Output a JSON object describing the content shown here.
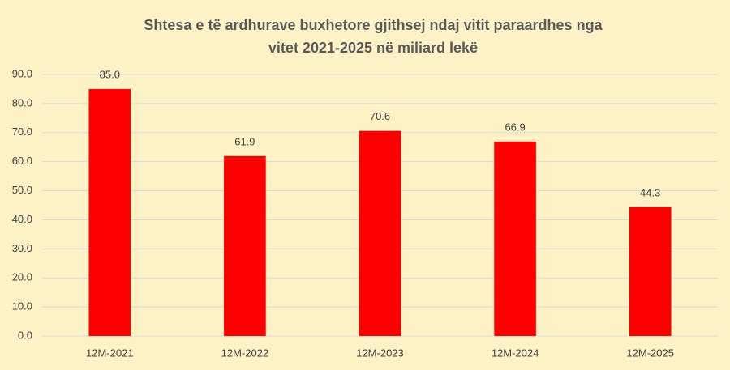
{
  "chart_data": {
    "type": "bar",
    "title": [
      "Shtesa e të ardhurave buxhetore gjithsej  ndaj vitit paraardhes nga",
      "vitet 2021-2025  në miliard lekë"
    ],
    "categories": [
      "12M-2021",
      "12M-2022",
      "12M-2023",
      "12M-2024",
      "12M-2025"
    ],
    "values": [
      85.0,
      61.9,
      70.6,
      66.9,
      44.3
    ],
    "value_labels": [
      "85.0",
      "61.9",
      "70.6",
      "66.9",
      "44.3"
    ],
    "color": "#ff0000",
    "ylim": [
      0,
      90
    ],
    "yticks": [
      {
        "value": 0,
        "label": "0.0"
      },
      {
        "value": 10,
        "label": "10.0"
      },
      {
        "value": 20,
        "label": "20.0"
      },
      {
        "value": 30,
        "label": "30.0"
      },
      {
        "value": 40,
        "label": "40.0"
      },
      {
        "value": 50,
        "label": "50.0"
      },
      {
        "value": 60,
        "label": "60.0"
      },
      {
        "value": 70,
        "label": "70.0"
      },
      {
        "value": 80,
        "label": "80.0"
      },
      {
        "value": 90,
        "label": "90.0"
      }
    ],
    "grid": true
  }
}
